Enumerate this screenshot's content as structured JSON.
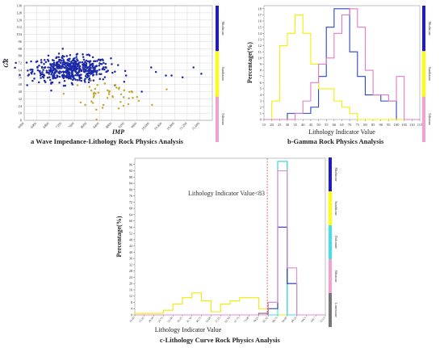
{
  "chart_data": [
    {
      "id": "a",
      "type": "scatter",
      "caption": "a  Wave Impedance-Lithology Rock Physics Analysis",
      "xlabel": "IMP",
      "ylabel": "GR",
      "xlim": [
        6000,
        12000
      ],
      "ylim": [
        8,
        136
      ],
      "xticks": [
        "6000",
        "6400",
        "6800",
        "7200",
        "7600",
        "8000",
        "8400",
        "8800",
        "9200",
        "9600",
        "10,000",
        "10,400",
        "10,800",
        "11,200",
        "11,600"
      ],
      "yticks": [
        "8",
        "16",
        "24",
        "32",
        "40",
        "48",
        "56",
        "64",
        "72",
        "80",
        "88",
        "96",
        "104",
        "112",
        "120",
        "128",
        "136"
      ],
      "legend_bar": [
        {
          "label": "Mudstone",
          "color": "#1a1adc"
        },
        {
          "label": "Sandstone",
          "color": "#ffff00"
        },
        {
          "label": "Siltstone",
          "color": "#f5a0d0"
        }
      ],
      "series": [
        {
          "name": "Mudstone",
          "color": "#1c2aa8",
          "cluster": {
            "x_center": 7500,
            "x_spread": 620,
            "y_center": 65,
            "y_spread": 7,
            "count": 520
          },
          "outliers": [
            [
              10050,
              67
            ],
            [
              10200,
              62
            ],
            [
              10520,
              58
            ],
            [
              10700,
              58
            ],
            [
              11050,
              56
            ],
            [
              11400,
              67
            ],
            [
              11650,
              60
            ],
            [
              9750,
              40
            ],
            [
              9250,
              58
            ]
          ]
        },
        {
          "name": "Sandstone",
          "color": "#c8a838",
          "cluster": {
            "x_center": 8650,
            "x_spread": 600,
            "y_center": 37,
            "y_spread": 7,
            "count": 45
          },
          "outliers": [
            [
              8300,
              20
            ],
            [
              8500,
              22
            ],
            [
              7800,
              28
            ],
            [
              9600,
              34
            ]
          ]
        }
      ]
    },
    {
      "id": "b",
      "type": "histogram",
      "caption": "b-Gamma Rock Physics Analysis",
      "xlabel": "Lithology Indicator Value",
      "ylabel": "Percentage(%)",
      "xlim": [
        15,
        115
      ],
      "ylim": [
        0,
        18.5
      ],
      "bin_edges": [
        15,
        20,
        25,
        30,
        35,
        40,
        45,
        50,
        55,
        60,
        65,
        70,
        75,
        80,
        85,
        90,
        95,
        100,
        105,
        110,
        115
      ],
      "xticks": [
        "15",
        "20",
        "25",
        "30",
        "35",
        "40",
        "45",
        "50",
        "55",
        "60",
        "65",
        "70",
        "75",
        "80",
        "85",
        "90",
        "95",
        "100",
        "105",
        "110",
        "115"
      ],
      "yticks": [
        "0",
        "1",
        "2",
        "3",
        "4",
        "5",
        "6",
        "7",
        "8",
        "9",
        "10",
        "11",
        "12",
        "13",
        "14",
        "15",
        "16",
        "17",
        "18"
      ],
      "legend_bar": [
        {
          "label": "Mudstone",
          "color": "#1a1adc"
        },
        {
          "label": "Sandstone",
          "color": "#ffff00"
        },
        {
          "label": "Siltstone",
          "color": "#f5a0d0"
        }
      ],
      "series": [
        {
          "name": "Mudstone",
          "color": "#2a44c8",
          "values": [
            0,
            0,
            0,
            1,
            1,
            1,
            2,
            7,
            15,
            18,
            18,
            11,
            7,
            4,
            4,
            3,
            3,
            0,
            0,
            0
          ]
        },
        {
          "name": "Sandstone",
          "color": "#f3f000",
          "values": [
            0,
            3,
            12,
            14,
            17,
            14,
            9,
            5,
            5,
            3,
            2,
            1,
            0,
            0,
            0,
            0,
            0,
            0,
            0,
            0
          ]
        },
        {
          "name": "Siltstone",
          "color": "#e37cc2",
          "values": [
            0,
            0,
            0,
            0,
            1,
            3,
            6,
            9,
            10,
            14,
            17,
            18,
            15,
            8,
            4,
            4,
            3,
            7,
            0,
            0
          ]
        }
      ]
    },
    {
      "id": "c",
      "type": "histogram",
      "caption": "c-Lithology Curve Rock Physics Analysis",
      "xlabel": "Lithology Indicator Value",
      "ylabel": "Percentage(%)",
      "ylim": [
        0,
        100
      ],
      "yticks": [
        "0",
        "4",
        "8",
        "12",
        "16",
        "20",
        "24",
        "28",
        "32",
        "36",
        "40",
        "44",
        "48",
        "52",
        "56",
        "60",
        "64",
        "68",
        "72",
        "76",
        "80",
        "84",
        "88",
        "92",
        "96"
      ],
      "xticks": [
        "10.00",
        "15.25",
        "20.50",
        "25.75",
        "31.00",
        "36.25",
        "41.50",
        "46.75",
        "52.00",
        "57.25",
        "62.50",
        "67.75",
        "73.00",
        "78.25",
        "83.50",
        "88.75",
        "94.00",
        "99.25",
        "104.5",
        "109.7",
        "115.0"
      ],
      "threshold_label": "Lithology Indicator Value<83",
      "threshold_x": 83,
      "legend_bar": [
        {
          "label": "Mudstone",
          "color": "#1a1adc"
        },
        {
          "label": "Sandstone",
          "color": "#ffff00"
        },
        {
          "label": "Dolomite",
          "color": "#40e0f0"
        },
        {
          "label": "Siltstone",
          "color": "#f5a0d0"
        },
        {
          "label": "Limestone",
          "color": "#777777"
        }
      ],
      "bin_edges": [
        10,
        15.25,
        20.5,
        25.75,
        31,
        36.25,
        41.5,
        46.75,
        52,
        57.25,
        62.5,
        67.75,
        73,
        78.25,
        83.5,
        88.75,
        94,
        99.25,
        104.5,
        109.75,
        115
      ],
      "series": [
        {
          "name": "Sandstone",
          "color": "#f0ec00",
          "values": [
            1,
            1,
            1,
            3,
            7,
            11,
            14,
            9,
            2,
            7,
            9,
            11,
            11,
            4,
            0,
            0,
            0,
            0,
            0,
            0
          ]
        },
        {
          "name": "Limestone",
          "color": "#707070",
          "values": [
            0,
            0,
            0,
            0,
            0,
            0,
            0,
            0,
            0,
            0,
            0,
            0,
            0,
            1,
            8,
            98,
            0,
            0,
            0,
            0
          ]
        },
        {
          "name": "Dolomite",
          "color": "#38e0f0",
          "values": [
            0,
            0,
            0,
            0,
            0,
            0,
            0,
            0,
            0,
            0,
            0,
            0,
            0,
            0,
            0,
            98,
            0,
            0,
            0,
            0
          ]
        },
        {
          "name": "Mudstone",
          "color": "#2030b0",
          "values": [
            0,
            0,
            0,
            0,
            0,
            0,
            0,
            0,
            0,
            0,
            0,
            0,
            0,
            0,
            4,
            56,
            20,
            0,
            0,
            0
          ]
        },
        {
          "name": "Siltstone",
          "color": "#e38ccc",
          "values": [
            0,
            0,
            0,
            0,
            0,
            0,
            0,
            0,
            0,
            0,
            0,
            0,
            0,
            0,
            8,
            92,
            30,
            0,
            0,
            0
          ]
        }
      ]
    }
  ]
}
